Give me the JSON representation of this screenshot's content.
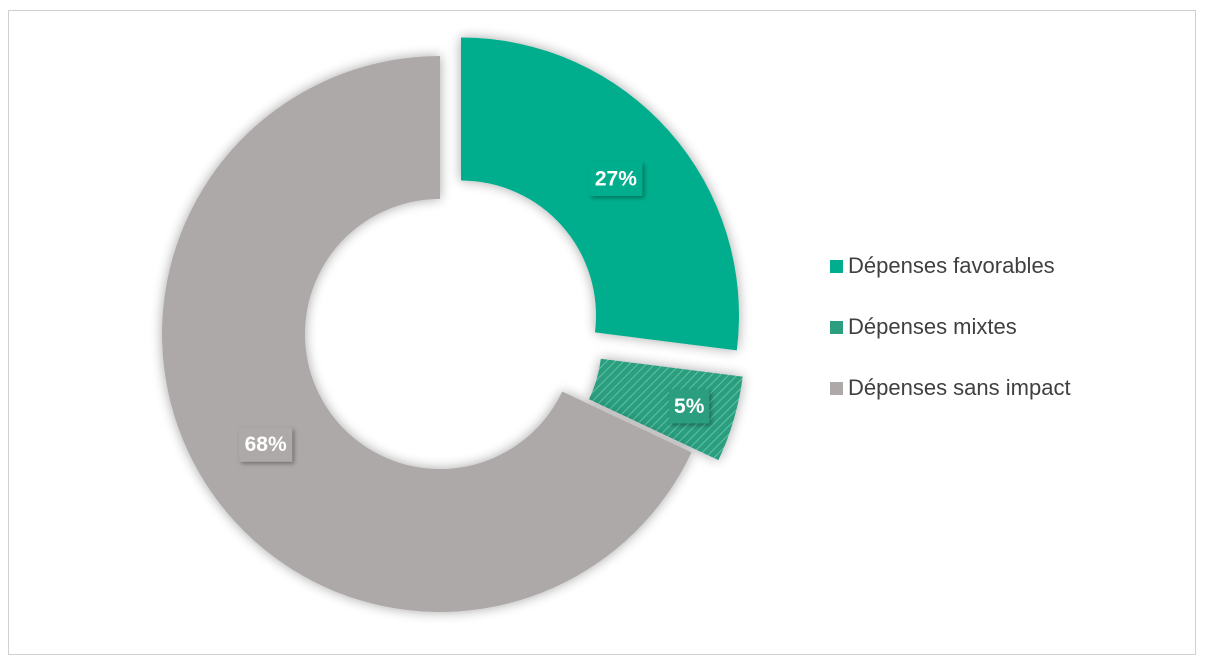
{
  "chart_data": {
    "type": "pie",
    "subtype": "donut",
    "title": "",
    "categories": [
      "Dépenses favorables",
      "Dépenses mixtes",
      "Dépenses sans impact"
    ],
    "values": [
      27,
      5,
      68
    ],
    "labels": [
      "27%",
      "5%",
      "68%"
    ],
    "colors": [
      "#00AE8D",
      "#2A9E7F",
      "#ADA9A8"
    ],
    "patterns": [
      "solid",
      "hatched",
      "solid"
    ],
    "exploded": [
      true,
      true,
      false
    ],
    "legend": {
      "position": "right",
      "entries": [
        "Dépenses favorables",
        "Dépenses mixtes",
        "Dépenses sans impact"
      ]
    }
  }
}
